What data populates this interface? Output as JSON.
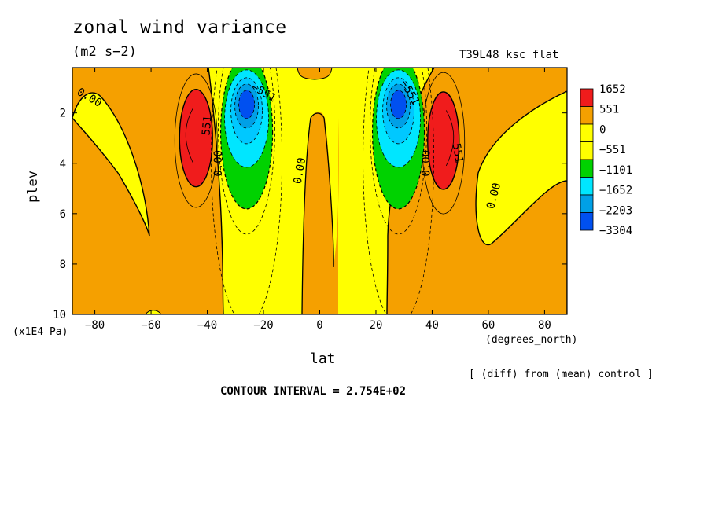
{
  "header": {
    "title": "zonal wind variance",
    "units": "(m2 s−2)",
    "run": "T39L48_ksc_flat"
  },
  "labels": {
    "ylabel": "plev",
    "yunits": "(x1E4 Pa)",
    "xlabel": "lat",
    "xunits": "(degrees_north)",
    "diff_note": "[ (diff) from (mean) control ]",
    "contour_interval": "CONTOUR INTERVAL = 2.754E+02"
  },
  "colors": {
    "band_pos2": "#f01c1c",
    "band_pos1": "#f5a000",
    "band_zero": "#ffff00",
    "band_neg1": "#00d200",
    "band_neg2": "#00e6ff",
    "band_neg3": "#00a0e6",
    "band_neg4": "#0050f0"
  },
  "chart_data": {
    "type": "contour",
    "title": "zonal wind variance",
    "xlabel": "lat",
    "ylabel": "plev",
    "xlim": [
      -88,
      88
    ],
    "ylim": [
      10,
      0.2
    ],
    "xticks": [
      -80,
      -60,
      -40,
      -20,
      0,
      20,
      40,
      60,
      80
    ],
    "xtick_labels": [
      "−80",
      "−60",
      "−40",
      "−20",
      "0",
      "20",
      "40",
      "60",
      "80"
    ],
    "yticks": [
      2,
      4,
      6,
      8,
      10
    ],
    "ytick_labels": [
      "2",
      "4",
      "6",
      "8",
      "10"
    ],
    "colorbar": {
      "levels": [
        "1652",
        "551",
        "0",
        "−551",
        "−1101",
        "−1652",
        "−2203",
        "−3304"
      ],
      "colors": [
        "#f01c1c",
        "#f5a000",
        "#ffff00",
        "#ffff00",
        "#00d200",
        "#00e6ff",
        "#00a0e6",
        "#0050f0"
      ]
    },
    "features": [
      {
        "kind": "max",
        "lat": -44,
        "plev": 2.5,
        "level": 1652
      },
      {
        "kind": "min",
        "lat": -26,
        "plev": 2.1,
        "level": -3304
      },
      {
        "kind": "min",
        "lat": 28,
        "plev": 2.0,
        "level": -3304
      },
      {
        "kind": "max",
        "lat": 44,
        "plev": 2.6,
        "level": 1652
      }
    ],
    "contour_labels": [
      {
        "text": "0.00",
        "lat": -82,
        "plev": 1.4,
        "rot": 30
      },
      {
        "text": "551",
        "lat": -40,
        "plev": 2.5,
        "rot": -85
      },
      {
        "text": "0.00",
        "lat": -36,
        "plev": 4.0,
        "rot": -90
      },
      {
        "text": "−551",
        "lat": -20,
        "plev": 1.2,
        "rot": 30
      },
      {
        "text": "0.00",
        "lat": -7,
        "plev": 4.3,
        "rot": -80
      },
      {
        "text": "−551",
        "lat": 32,
        "plev": 1.2,
        "rot": 60
      },
      {
        "text": "0.00",
        "lat": 38,
        "plev": 4.0,
        "rot": -90
      },
      {
        "text": "551",
        "lat": 49,
        "plev": 3.6,
        "rot": 80
      },
      {
        "text": "0.00",
        "lat": 62,
        "plev": 5.3,
        "rot": -75
      }
    ]
  }
}
